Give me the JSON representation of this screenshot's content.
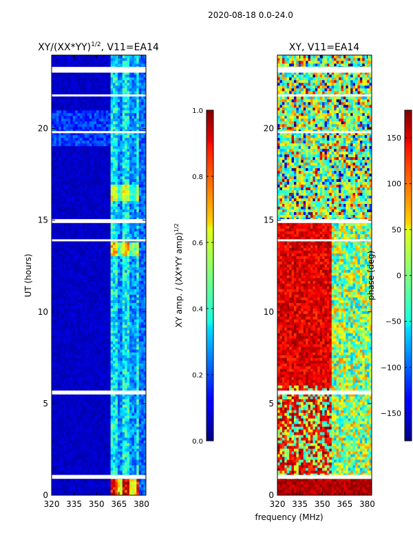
{
  "suptitle": "2020-08-18 0.0-24.0",
  "xlabel_shared": "frequency (MHz)",
  "chart_data": [
    {
      "type": "heatmap",
      "title": "XY/(XX*YY)¹ᐟ², V11=EA14",
      "title_main": "XY/(XX*YY)",
      "title_exp": "1/2",
      "title_suffix": ", V11=EA14",
      "xlabel": "",
      "ylabel": "UT (hours)",
      "xlim": [
        320,
        383
      ],
      "ylim": [
        0,
        24
      ],
      "xticks": [
        320,
        335,
        350,
        365,
        380
      ],
      "yticks": [
        0,
        5,
        10,
        15,
        20
      ],
      "colorbar": {
        "label_main": "XY amp. / (XX*YY amp)",
        "label_exp": "1/2",
        "range": [
          0.0,
          1.0
        ],
        "ticks": [
          0.0,
          0.2,
          0.4,
          0.6,
          0.8,
          1.0
        ],
        "tick_labels": [
          "0.0",
          "0.2",
          "0.4",
          "0.6",
          "0.8",
          "1.0"
        ],
        "colormap": "jet"
      },
      "flagged_hours": [
        0.95,
        1.05,
        5.55,
        5.65,
        13.9,
        14.9,
        15.0,
        19.8,
        21.8,
        23.1,
        23.2,
        23.3
      ],
      "notes": "Mostly low amplitude (~0.05); elevated amplitude (0.3-0.6) in 360-380 MHz band; strong RFI (~0.8-1.0) near 0.5 h at 360-380 MHz"
    },
    {
      "type": "heatmap",
      "title": "XY, V11=EA14",
      "xlabel": "frequency (MHz)",
      "ylabel": "",
      "xlim": [
        320,
        383
      ],
      "ylim": [
        0,
        24
      ],
      "xticks": [
        320,
        335,
        350,
        365,
        380
      ],
      "yticks": [
        0,
        5,
        10,
        15,
        20
      ],
      "colorbar": {
        "label": "phase (deg)",
        "range": [
          -180,
          180
        ],
        "ticks": [
          -150,
          -100,
          -50,
          0,
          50,
          100,
          150
        ],
        "tick_labels": [
          "−150",
          "−100",
          "−50",
          "0",
          "50",
          "100",
          "150"
        ],
        "colormap": "jet"
      },
      "flagged_hours": [
        0.95,
        1.05,
        5.55,
        5.65,
        13.9,
        14.9,
        15.0,
        19.8,
        21.8,
        23.1,
        23.2,
        23.3
      ],
      "notes": "Phase mostly +100 to +180 deg (red) below ~355 MHz after 6 h; mixed/green (~0 deg) above 355 MHz and after 15 h"
    }
  ]
}
